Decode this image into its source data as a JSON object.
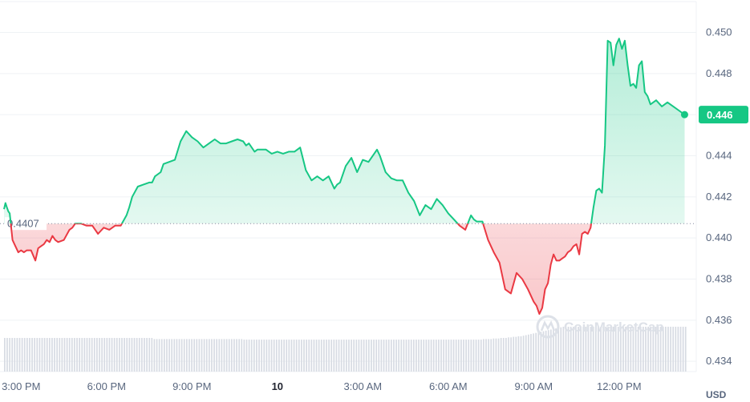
{
  "chart_data": {
    "type": "area",
    "ylim": [
      0.4335,
      0.4515
    ],
    "y_ticks": [
      "0.434",
      "0.436",
      "0.438",
      "0.440",
      "0.442",
      "0.444",
      "0.446",
      "0.448",
      "0.450"
    ],
    "x_tick_labels": [
      "3:00 PM",
      "6:00 PM",
      "9:00 PM",
      "10",
      "3:00 AM",
      "6:00 AM",
      "9:00 AM",
      "12:00 PM"
    ],
    "x_tick_hours": [
      0,
      3,
      6,
      9,
      12,
      15,
      18,
      21
    ],
    "x_range_hours": [
      -0.6,
      23.4
    ],
    "baseline": 0.4407,
    "baseline_label": "0.4407",
    "current_price": 0.446,
    "current_price_label": "0.446",
    "currency": "USD",
    "watermark": "CoinMarketCap",
    "up_color": "#16c784",
    "down_color": "#ea3943",
    "volume": [
      0.6,
      0.6,
      0.6,
      0.6,
      0.6,
      0.6,
      0.6,
      0.6,
      0.6,
      0.6,
      0.6,
      0.6,
      0.6,
      0.6,
      0.6,
      0.6,
      0.6,
      0.6,
      0.6,
      0.6,
      0.6,
      0.6,
      0.6,
      0.6,
      0.6,
      0.6,
      0.6,
      0.6,
      0.6,
      0.6,
      0.6,
      0.6,
      0.6,
      0.6,
      0.6,
      0.6,
      0.6,
      0.6,
      0.6,
      0.6,
      0.6,
      0.6,
      0.6,
      0.6,
      0.6,
      0.6,
      0.6,
      0.6,
      0.6,
      0.6,
      0.6,
      0.6,
      0.6,
      0.6,
      0.6,
      0.6,
      0.6,
      0.6,
      0.6,
      0.6,
      0.58,
      0.58,
      0.58,
      0.58,
      0.58,
      0.58,
      0.58,
      0.58,
      0.58,
      0.58,
      0.58,
      0.58,
      0.58,
      0.58,
      0.58,
      0.58,
      0.58,
      0.58,
      0.58,
      0.58,
      0.58,
      0.58,
      0.58,
      0.58,
      0.58,
      0.58,
      0.58,
      0.58,
      0.58,
      0.58,
      0.58,
      0.58,
      0.58,
      0.58,
      0.58,
      0.58,
      0.57,
      0.57,
      0.57,
      0.57,
      0.57,
      0.57,
      0.57,
      0.57,
      0.57,
      0.57,
      0.57,
      0.57,
      0.57,
      0.57,
      0.57,
      0.57,
      0.57,
      0.57,
      0.57,
      0.57,
      0.57,
      0.57,
      0.57,
      0.57,
      0.57,
      0.57,
      0.57,
      0.57,
      0.57,
      0.57,
      0.57,
      0.57,
      0.57,
      0.57,
      0.57,
      0.57,
      0.57,
      0.57,
      0.57,
      0.57,
      0.57,
      0.57,
      0.57,
      0.57,
      0.57,
      0.57,
      0.57,
      0.57,
      0.57,
      0.57,
      0.57,
      0.57,
      0.57,
      0.57,
      0.57,
      0.57,
      0.57,
      0.57,
      0.57,
      0.57,
      0.57,
      0.57,
      0.57,
      0.57,
      0.57,
      0.57,
      0.57,
      0.57,
      0.57,
      0.57,
      0.57,
      0.57,
      0.57,
      0.57,
      0.57,
      0.57,
      0.57,
      0.57,
      0.57,
      0.57,
      0.57,
      0.57,
      0.57,
      0.57,
      0.57,
      0.57,
      0.57,
      0.57,
      0.57,
      0.57,
      0.57,
      0.57,
      0.57,
      0.57,
      0.57,
      0.57,
      0.58,
      0.58,
      0.58,
      0.58,
      0.59,
      0.59,
      0.59,
      0.6,
      0.6,
      0.6,
      0.61,
      0.61,
      0.62,
      0.62,
      0.63,
      0.63,
      0.64,
      0.65,
      0.66,
      0.67,
      0.68,
      0.69,
      0.7,
      0.71,
      0.72,
      0.73,
      0.74,
      0.75,
      0.76,
      0.77,
      0.78,
      0.79,
      0.8,
      0.8,
      0.8,
      0.8,
      0.8,
      0.8,
      0.8,
      0.8,
      0.8,
      0.8,
      0.8,
      0.8,
      0.8,
      0.8,
      0.8,
      0.8,
      0.8,
      0.8,
      0.8,
      0.8,
      0.8,
      0.8,
      0.8,
      0.8,
      0.8,
      0.8,
      0.8,
      0.8,
      0.8,
      0.8,
      0.8,
      0.8,
      0.8,
      0.8,
      0.8,
      0.8,
      0.8,
      0.8,
      0.8,
      0.8,
      0.8,
      0.8,
      0.8,
      0.8,
      0.8,
      0.8,
      0.8,
      0.8,
      0.8,
      0.8
    ],
    "series": [
      {
        "x": [
          -0.6,
          -0.55,
          -0.5,
          -0.45,
          -0.4,
          -0.3,
          -0.2,
          -0.1,
          0.0,
          0.1,
          0.2,
          0.35,
          0.5,
          0.6,
          0.7,
          0.8,
          0.9,
          1.0,
          1.1,
          1.2,
          1.3,
          1.5,
          1.7,
          1.8,
          1.9,
          2.1,
          2.3,
          2.5,
          2.7,
          2.9,
          3.1,
          3.3,
          3.5,
          3.7,
          3.8,
          3.9,
          4.1,
          4.3,
          4.5,
          4.6,
          4.7,
          4.9,
          5.0,
          5.2,
          5.4,
          5.6,
          5.8,
          6.0,
          6.2,
          6.4,
          6.6,
          6.8,
          7.0,
          7.2,
          7.4,
          7.6,
          7.8,
          7.9,
          8.0,
          8.1,
          8.2,
          8.3,
          8.4,
          8.6,
          8.8,
          9.0,
          9.2,
          9.4,
          9.6,
          9.8,
          10.0,
          10.2,
          10.4,
          10.6,
          10.8,
          11.0,
          11.1,
          11.2,
          11.4,
          11.6,
          11.8,
          12.0,
          12.2,
          12.4,
          12.5,
          12.6,
          12.8,
          13.0,
          13.2,
          13.4,
          13.6,
          13.8,
          14.0,
          14.2,
          14.4,
          14.6,
          14.8,
          15.0,
          15.2,
          15.4,
          15.6,
          15.8,
          15.9,
          16.0,
          16.2,
          16.4,
          16.6,
          16.8,
          17.0,
          17.2,
          17.4,
          17.6,
          17.8,
          18.0,
          18.1,
          18.2,
          18.3,
          18.4,
          18.5,
          18.6,
          18.7,
          18.8,
          18.9,
          19.0,
          19.1,
          19.2,
          19.3,
          19.4,
          19.5,
          19.6,
          19.7,
          19.8,
          19.9,
          20.0,
          20.1,
          20.2,
          20.3,
          20.4,
          20.5,
          20.6,
          20.7,
          20.8,
          20.9,
          21.0,
          21.1,
          21.2,
          21.3,
          21.4,
          21.5,
          21.6,
          21.7,
          21.8,
          21.9,
          22.0,
          22.1,
          22.3,
          22.5,
          22.7,
          22.9,
          23.1,
          23.3
        ],
        "y": [
          0.4414,
          0.4417,
          0.4415,
          0.4413,
          0.4412,
          0.4399,
          0.4396,
          0.4393,
          0.4394,
          0.4393,
          0.4394,
          0.4394,
          0.4389,
          0.4395,
          0.4396,
          0.4397,
          0.4399,
          0.4398,
          0.4401,
          0.4399,
          0.4398,
          0.4399,
          0.4404,
          0.4405,
          0.4407,
          0.4407,
          0.4406,
          0.4406,
          0.4402,
          0.4405,
          0.4404,
          0.4406,
          0.4406,
          0.4411,
          0.4415,
          0.442,
          0.4425,
          0.4426,
          0.4427,
          0.4427,
          0.443,
          0.4432,
          0.4436,
          0.4437,
          0.4438,
          0.4447,
          0.4452,
          0.4449,
          0.4447,
          0.4444,
          0.4446,
          0.4448,
          0.4446,
          0.4446,
          0.4447,
          0.4448,
          0.4447,
          0.4445,
          0.4446,
          0.4444,
          0.4442,
          0.4443,
          0.4443,
          0.4443,
          0.4441,
          0.4442,
          0.4441,
          0.4442,
          0.4442,
          0.4444,
          0.4433,
          0.4428,
          0.443,
          0.4428,
          0.443,
          0.4424,
          0.4426,
          0.4427,
          0.4435,
          0.4439,
          0.4432,
          0.4438,
          0.4437,
          0.4441,
          0.4443,
          0.444,
          0.4432,
          0.4429,
          0.4428,
          0.4428,
          0.4422,
          0.4418,
          0.4411,
          0.4416,
          0.4414,
          0.4419,
          0.4416,
          0.4412,
          0.4409,
          0.4406,
          0.4404,
          0.4411,
          0.4409,
          0.4408,
          0.4408,
          0.4399,
          0.4393,
          0.4388,
          0.4375,
          0.4373,
          0.4383,
          0.438,
          0.4375,
          0.4369,
          0.4367,
          0.4363,
          0.4366,
          0.4375,
          0.4378,
          0.4387,
          0.4392,
          0.4389,
          0.4389,
          0.439,
          0.4391,
          0.4393,
          0.4394,
          0.4396,
          0.4397,
          0.4392,
          0.4402,
          0.4403,
          0.4402,
          0.4405,
          0.4415,
          0.4423,
          0.4424,
          0.4422,
          0.4445,
          0.4496,
          0.4495,
          0.4484,
          0.4494,
          0.4497,
          0.4492,
          0.4496,
          0.4484,
          0.4474,
          0.4475,
          0.4473,
          0.4484,
          0.4486,
          0.4471,
          0.4469,
          0.4465,
          0.4467,
          0.4464,
          0.4466,
          0.4464,
          0.4462,
          0.446
        ]
      }
    ]
  }
}
